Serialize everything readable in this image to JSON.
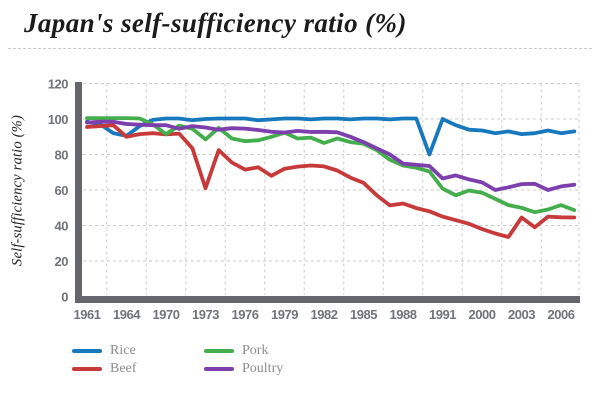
{
  "header": {
    "title": "Japan's self-sufficiency ratio (%)"
  },
  "chart_data": {
    "type": "line",
    "title": "Japan's self-sufficiency ratio (%)",
    "xlabel": "",
    "ylabel": "Self-sufficiency ratio (%)",
    "ylim": [
      0,
      120
    ],
    "y_ticks": [
      120,
      100,
      80,
      60,
      40,
      20,
      0
    ],
    "x_tick_labels": [
      "1961",
      "1964",
      "1970",
      "1973",
      "1976",
      "1979",
      "1982",
      "1985",
      "1988",
      "1991",
      "2000",
      "2003",
      "2006"
    ],
    "points_between_labels": 3,
    "grid": "dashed",
    "legend_position": "bottom-left",
    "axis_color": "#64666c",
    "tick_color": "#70747a",
    "gridline_color": "#cbcbcb",
    "series": [
      {
        "name": "Rice",
        "color": "#1778be",
        "values": [
          98.5,
          97,
          92,
          90.5,
          96,
          99.5,
          100.3,
          100.3,
          99.3,
          100,
          100.3,
          100.3,
          100.3,
          99.3,
          99.8,
          100.3,
          100.3,
          99.8,
          100.3,
          100.3,
          99.8,
          100.3,
          100.3,
          99.8,
          100.3,
          100.3,
          80,
          100,
          96.5,
          94,
          93.5,
          92,
          93,
          91.5,
          92,
          93.5,
          92,
          93
        ]
      },
      {
        "name": "Beef",
        "color": "#c83a3a",
        "values": [
          95.5,
          96,
          96.5,
          90,
          91.5,
          92,
          91.3,
          91.8,
          83.5,
          61,
          82.5,
          75.5,
          71.5,
          72.8,
          68,
          72,
          73.2,
          73.8,
          73.3,
          71,
          67,
          64,
          57,
          51.3,
          52.4,
          49.8,
          48,
          45,
          43,
          41,
          38,
          35.5,
          33.5,
          44.5,
          39,
          45,
          44.6,
          44.5
        ]
      },
      {
        "name": "Pork",
        "color": "#44ad4c",
        "values": [
          100.5,
          100.5,
          100.5,
          100.5,
          100.3,
          97,
          91.5,
          96.3,
          94.5,
          88.5,
          95,
          89,
          87.5,
          88,
          90,
          92.3,
          89,
          89.5,
          86.5,
          89,
          87,
          86,
          82.5,
          77,
          73.8,
          72.5,
          70.5,
          60.8,
          57,
          59.7,
          58.5,
          55,
          51.5,
          50,
          47.5,
          49,
          51.5,
          48.7
        ]
      },
      {
        "name": "Poultry",
        "color": "#7d3fae",
        "values": [
          98,
          98.5,
          98.5,
          97.2,
          96.8,
          96.5,
          96.5,
          94.5,
          96,
          95.2,
          94,
          94.8,
          94.6,
          93.8,
          92.8,
          92.4,
          93.3,
          92.7,
          92.8,
          92.5,
          90,
          87,
          83.5,
          80,
          74.9,
          74.2,
          73.5,
          66.5,
          68.2,
          66,
          64.3,
          60,
          61.5,
          63.3,
          63.5,
          60,
          62,
          63
        ]
      }
    ]
  }
}
